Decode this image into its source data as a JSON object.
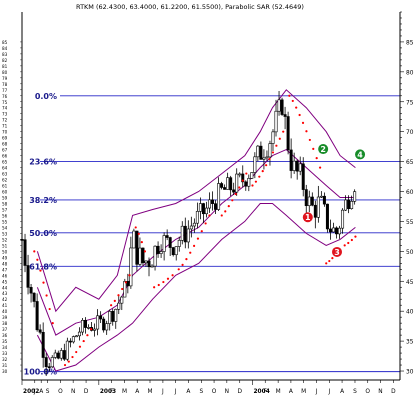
{
  "chart_data": {
    "type": "candlestick",
    "title": "RTKM (62.4300, 63.4000, 61.2200, 61.5500), Parabolic SAR (52.4649)",
    "grid": false,
    "legend": "none",
    "y_axis_side": "right",
    "ylim": [
      28.5,
      90
    ],
    "y_ticks": [
      30,
      31,
      32,
      33,
      34,
      35,
      36,
      37,
      38,
      39,
      40,
      41,
      42,
      43,
      44,
      45,
      46,
      47,
      48,
      49,
      50,
      51,
      52,
      53,
      54,
      55,
      56,
      57,
      58,
      59,
      60,
      61,
      62,
      63,
      64,
      65,
      66,
      67,
      68,
      69,
      70,
      71,
      72,
      73,
      74,
      75,
      76,
      77,
      78,
      79,
      80,
      81,
      82,
      83,
      84,
      85,
      86,
      87,
      88,
      89,
      90
    ],
    "y_tick_labels": [
      "30",
      "35",
      "40",
      "45",
      "50",
      "55",
      "60",
      "65",
      "70",
      "75",
      "80",
      "85"
    ],
    "left_tick_labels": [
      "30",
      "31",
      "32",
      "33",
      "34",
      "35",
      "36",
      "37",
      "38",
      "39",
      "40",
      "41",
      "42",
      "43",
      "44",
      "45",
      "46",
      "47",
      "48",
      "49",
      "50",
      "51",
      "52",
      "53",
      "54",
      "55",
      "56",
      "57",
      "58",
      "59",
      "60",
      "61",
      "62",
      "63",
      "64",
      "65",
      "66",
      "67",
      "68",
      "69",
      "70",
      "71",
      "72",
      "73",
      "74",
      "75",
      "76",
      "77",
      "78",
      "79",
      "80",
      "81",
      "82",
      "83",
      "84",
      "85"
    ],
    "xlim": [
      2002.5,
      2004.96
    ],
    "x_tick_labels": [
      {
        "label": "2002",
        "x": 2002.5
      },
      {
        "label": "J",
        "x": 2002.583
      },
      {
        "label": "A",
        "x": 2002.625
      },
      {
        "label": "S",
        "x": 2002.667
      },
      {
        "label": "O",
        "x": 2002.75
      },
      {
        "label": "N",
        "x": 2002.833
      },
      {
        "label": "D",
        "x": 2002.917
      },
      {
        "label": "2003",
        "x": 2003.0
      },
      {
        "label": "F",
        "x": 2003.083
      },
      {
        "label": "M",
        "x": 2003.167
      },
      {
        "label": "A",
        "x": 2003.25
      },
      {
        "label": "M",
        "x": 2003.333
      },
      {
        "label": "J",
        "x": 2003.417
      },
      {
        "label": "J",
        "x": 2003.5
      },
      {
        "label": "A",
        "x": 2003.583
      },
      {
        "label": "S",
        "x": 2003.667
      },
      {
        "label": "O",
        "x": 2003.75
      },
      {
        "label": "N",
        "x": 2003.833
      },
      {
        "label": "D",
        "x": 2003.917
      },
      {
        "label": "2004",
        "x": 2004.0
      },
      {
        "label": "F",
        "x": 2004.083
      },
      {
        "label": "M",
        "x": 2004.167
      },
      {
        "label": "A",
        "x": 2004.25
      },
      {
        "label": "M",
        "x": 2004.333
      },
      {
        "label": "J",
        "x": 2004.417
      },
      {
        "label": "J",
        "x": 2004.5
      },
      {
        "label": "A",
        "x": 2004.583
      },
      {
        "label": "S",
        "x": 2004.667
      },
      {
        "label": "O",
        "x": 2004.75
      },
      {
        "label": "N",
        "x": 2004.833
      },
      {
        "label": "D",
        "x": 2004.917
      }
    ],
    "fib_levels": [
      {
        "label": "0.0%",
        "value": 76
      },
      {
        "label": "23.6%",
        "value": 65
      },
      {
        "label": "38.2%",
        "value": 58.6
      },
      {
        "label": "50.0%",
        "value": 53.1
      },
      {
        "label": "61.8%",
        "value": 47.5
      },
      {
        "label": "100.0%",
        "value": 29.9
      }
    ],
    "bar_anchors": [
      {
        "x": 2002.5,
        "close": 52,
        "spread": 6
      },
      {
        "x": 2002.54,
        "close": 46,
        "spread": 5
      },
      {
        "x": 2002.6,
        "close": 38,
        "spread": 5
      },
      {
        "x": 2002.66,
        "close": 32,
        "spread": 4
      },
      {
        "x": 2002.72,
        "close": 31.5,
        "spread": 3
      },
      {
        "x": 2002.8,
        "close": 34,
        "spread": 3
      },
      {
        "x": 2002.88,
        "close": 37,
        "spread": 3
      },
      {
        "x": 2002.94,
        "close": 37.5,
        "spread": 3
      },
      {
        "x": 2003.02,
        "close": 38,
        "spread": 3
      },
      {
        "x": 2003.1,
        "close": 40,
        "spread": 3
      },
      {
        "x": 2003.18,
        "close": 44,
        "spread": 4
      },
      {
        "x": 2003.22,
        "close": 52,
        "spread": 6
      },
      {
        "x": 2003.28,
        "close": 48,
        "spread": 5
      },
      {
        "x": 2003.34,
        "close": 49,
        "spread": 5
      },
      {
        "x": 2003.4,
        "close": 52,
        "spread": 4
      },
      {
        "x": 2003.48,
        "close": 51,
        "spread": 4
      },
      {
        "x": 2003.56,
        "close": 53,
        "spread": 4
      },
      {
        "x": 2003.62,
        "close": 55,
        "spread": 4
      },
      {
        "x": 2003.7,
        "close": 57,
        "spread": 4
      },
      {
        "x": 2003.8,
        "close": 60,
        "spread": 4
      },
      {
        "x": 2003.88,
        "close": 61,
        "spread": 4
      },
      {
        "x": 2003.94,
        "close": 62,
        "spread": 4
      },
      {
        "x": 2004.0,
        "close": 64,
        "spread": 4
      },
      {
        "x": 2004.06,
        "close": 67,
        "spread": 5
      },
      {
        "x": 2004.12,
        "close": 69,
        "spread": 5
      },
      {
        "x": 2004.16,
        "close": 72,
        "spread": 5
      },
      {
        "x": 2004.19,
        "close": 75,
        "spread": 4
      },
      {
        "x": 2004.22,
        "close": 70,
        "spread": 6
      },
      {
        "x": 2004.26,
        "close": 64,
        "spread": 5
      },
      {
        "x": 2004.32,
        "close": 62,
        "spread": 5
      },
      {
        "x": 2004.38,
        "close": 57,
        "spread": 5
      },
      {
        "x": 2004.44,
        "close": 58,
        "spread": 5
      },
      {
        "x": 2004.5,
        "close": 54,
        "spread": 4
      },
      {
        "x": 2004.55,
        "close": 53,
        "spread": 4
      },
      {
        "x": 2004.59,
        "close": 57,
        "spread": 4
      },
      {
        "x": 2004.64,
        "close": 60,
        "spread": 4
      },
      {
        "x": 2004.67,
        "close": 61.55,
        "spread": 3
      }
    ],
    "upper_band": [
      {
        "x": 2002.6,
        "y": 50
      },
      {
        "x": 2002.72,
        "y": 40
      },
      {
        "x": 2002.85,
        "y": 44
      },
      {
        "x": 2003.0,
        "y": 42
      },
      {
        "x": 2003.12,
        "y": 46
      },
      {
        "x": 2003.22,
        "y": 56
      },
      {
        "x": 2003.35,
        "y": 57
      },
      {
        "x": 2003.5,
        "y": 58
      },
      {
        "x": 2003.65,
        "y": 60
      },
      {
        "x": 2003.8,
        "y": 63
      },
      {
        "x": 2003.95,
        "y": 66
      },
      {
        "x": 2004.05,
        "y": 70
      },
      {
        "x": 2004.13,
        "y": 74
      },
      {
        "x": 2004.22,
        "y": 77
      },
      {
        "x": 2004.35,
        "y": 74
      },
      {
        "x": 2004.48,
        "y": 70
      },
      {
        "x": 2004.57,
        "y": 66
      },
      {
        "x": 2004.67,
        "y": 64
      }
    ],
    "middle_band": [
      {
        "x": 2002.6,
        "y": 44
      },
      {
        "x": 2002.72,
        "y": 36
      },
      {
        "x": 2002.85,
        "y": 38
      },
      {
        "x": 2003.0,
        "y": 39
      },
      {
        "x": 2003.12,
        "y": 41
      },
      {
        "x": 2003.22,
        "y": 46
      },
      {
        "x": 2003.35,
        "y": 49
      },
      {
        "x": 2003.5,
        "y": 52
      },
      {
        "x": 2003.65,
        "y": 54
      },
      {
        "x": 2003.8,
        "y": 58
      },
      {
        "x": 2003.95,
        "y": 61
      },
      {
        "x": 2004.05,
        "y": 64
      },
      {
        "x": 2004.13,
        "y": 66
      },
      {
        "x": 2004.22,
        "y": 67
      },
      {
        "x": 2004.35,
        "y": 64
      },
      {
        "x": 2004.48,
        "y": 61
      },
      {
        "x": 2004.57,
        "y": 59
      },
      {
        "x": 2004.67,
        "y": 59
      }
    ],
    "lower_band": [
      {
        "x": 2002.6,
        "y": 36
      },
      {
        "x": 2002.72,
        "y": 30
      },
      {
        "x": 2002.85,
        "y": 31
      },
      {
        "x": 2003.0,
        "y": 34
      },
      {
        "x": 2003.12,
        "y": 36
      },
      {
        "x": 2003.22,
        "y": 38
      },
      {
        "x": 2003.35,
        "y": 42
      },
      {
        "x": 2003.5,
        "y": 46
      },
      {
        "x": 2003.65,
        "y": 48
      },
      {
        "x": 2003.8,
        "y": 52
      },
      {
        "x": 2003.95,
        "y": 55
      },
      {
        "x": 2004.05,
        "y": 58
      },
      {
        "x": 2004.13,
        "y": 58
      },
      {
        "x": 2004.22,
        "y": 56
      },
      {
        "x": 2004.35,
        "y": 53
      },
      {
        "x": 2004.48,
        "y": 51
      },
      {
        "x": 2004.57,
        "y": 52
      },
      {
        "x": 2004.67,
        "y": 54
      }
    ],
    "sar_segments": [
      {
        "start": [
          2002.58,
          50
        ],
        "end": [
          2002.7,
          38
        ],
        "count": 7
      },
      {
        "start": [
          2002.78,
          31
        ],
        "end": [
          2002.95,
          37
        ],
        "count": 8
      },
      {
        "start": [
          2003.08,
          41
        ],
        "end": [
          2003.2,
          46
        ],
        "count": 6
      },
      {
        "start": [
          2003.24,
          54
        ],
        "end": [
          2003.3,
          50
        ],
        "count": 4
      },
      {
        "start": [
          2003.36,
          44
        ],
        "end": [
          2003.48,
          46
        ],
        "count": 5
      },
      {
        "start": [
          2003.52,
          47
        ],
        "end": [
          2003.72,
          56
        ],
        "count": 9
      },
      {
        "start": [
          2003.8,
          56
        ],
        "end": [
          2003.96,
          63
        ],
        "count": 8
      },
      {
        "start": [
          2004.0,
          61
        ],
        "end": [
          2004.2,
          70
        ],
        "count": 10
      },
      {
        "start": [
          2004.24,
          76
        ],
        "end": [
          2004.44,
          64
        ],
        "count": 10
      },
      {
        "start": [
          2004.48,
          48
        ],
        "end": [
          2004.56,
          50
        ],
        "count": 5
      },
      {
        "start": [
          2004.6,
          51
        ],
        "end": [
          2004.67,
          52.46
        ],
        "count": 4
      }
    ],
    "colors": {
      "fib_line": "#2626c8",
      "fib_text": "#1a1a8c",
      "bars": "#000000",
      "bands": "#800080",
      "sar": "#ff0000",
      "marker_red": "#e0141e",
      "marker_green": "#168c28",
      "axis": "#000000"
    },
    "markers": [
      {
        "label": "1",
        "x": 2004.36,
        "y": 55.7,
        "color": "red"
      },
      {
        "label": "2",
        "x": 2004.46,
        "y": 67.1,
        "color": "green"
      },
      {
        "label": "3",
        "x": 2004.55,
        "y": 49.9,
        "color": "red"
      },
      {
        "label": "4",
        "x": 2004.7,
        "y": 66.2,
        "color": "green"
      }
    ]
  }
}
